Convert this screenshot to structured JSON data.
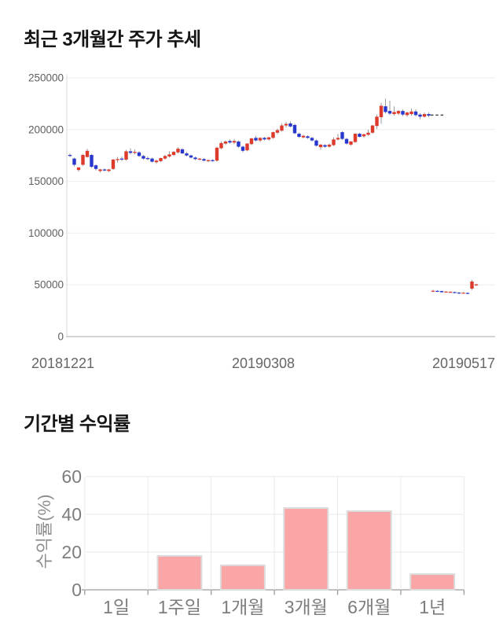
{
  "chart_data": [
    {
      "type": "candlestick",
      "title": "최근 3개월간 주가 추세",
      "x_tick_labels": [
        "20181221",
        "20190308",
        "20190517"
      ],
      "y_tick_labels": [
        "0",
        "50000",
        "100000",
        "150000",
        "200000",
        "250000"
      ],
      "y_tick_values": [
        0,
        50000,
        100000,
        150000,
        200000,
        250000
      ],
      "ylim": [
        0,
        250000
      ],
      "grid": true,
      "up_color": "#DE3A2C",
      "down_color": "#2838CE",
      "wick_color": "#9B9B9B",
      "dash_color": "#4A4A4A",
      "candles_ohlc": [
        [
          175500,
          177000,
          173500,
          174500
        ],
        [
          172000,
          173000,
          164500,
          166000
        ],
        [
          161000,
          163500,
          159500,
          163500
        ],
        [
          166000,
          176500,
          165000,
          175500
        ],
        [
          173500,
          181500,
          173000,
          179500
        ],
        [
          175500,
          176500,
          163000,
          164000
        ],
        [
          165500,
          166500,
          160500,
          162000
        ],
        [
          160000,
          162000,
          158500,
          161500
        ],
        [
          161500,
          162500,
          159500,
          160500
        ],
        [
          160000,
          162000,
          159000,
          161500
        ],
        [
          162000,
          172000,
          161000,
          171000
        ],
        [
          170500,
          173500,
          168000,
          171500
        ],
        [
          172000,
          174000,
          169500,
          171000
        ],
        [
          171000,
          180500,
          170000,
          179000
        ],
        [
          179000,
          182000,
          176000,
          177500
        ],
        [
          177500,
          181000,
          176000,
          178500
        ],
        [
          178000,
          179000,
          173500,
          174500
        ],
        [
          174500,
          175500,
          171000,
          172000
        ],
        [
          172500,
          174000,
          170500,
          171500
        ],
        [
          172000,
          173000,
          168000,
          169000
        ],
        [
          168500,
          171000,
          167000,
          170000
        ],
        [
          169500,
          173000,
          168500,
          172500
        ],
        [
          172000,
          175500,
          171000,
          174500
        ],
        [
          174000,
          179000,
          173000,
          176000
        ],
        [
          175500,
          179500,
          174500,
          178500
        ],
        [
          178000,
          183000,
          177000,
          181500
        ],
        [
          181000,
          182000,
          176500,
          177000
        ],
        [
          177000,
          178500,
          174000,
          175000
        ],
        [
          175000,
          176000,
          172000,
          173000
        ],
        [
          173000,
          174000,
          170500,
          171500
        ],
        [
          171000,
          172500,
          170000,
          172000
        ],
        [
          171500,
          172500,
          169500,
          170000
        ],
        [
          169500,
          171000,
          168500,
          170500
        ],
        [
          170500,
          171500,
          169000,
          169500
        ],
        [
          170000,
          183500,
          169000,
          182500
        ],
        [
          182000,
          188500,
          181000,
          187000
        ],
        [
          186500,
          189500,
          185000,
          188500
        ],
        [
          189000,
          190500,
          186500,
          187500
        ],
        [
          187500,
          191000,
          186000,
          189000
        ],
        [
          188500,
          189500,
          182500,
          183500
        ],
        [
          183500,
          184500,
          178000,
          179500
        ],
        [
          180000,
          187000,
          179000,
          186500
        ],
        [
          186000,
          192000,
          185000,
          191500
        ],
        [
          192000,
          194000,
          188500,
          189500
        ],
        [
          189500,
          192500,
          188000,
          192000
        ],
        [
          192000,
          193000,
          189500,
          190500
        ],
        [
          190500,
          193000,
          189500,
          192500
        ],
        [
          192000,
          198000,
          191000,
          197500
        ],
        [
          197000,
          201000,
          195500,
          199500
        ],
        [
          199000,
          206000,
          198000,
          204000
        ],
        [
          204000,
          207500,
          202000,
          205500
        ],
        [
          206000,
          208000,
          202000,
          203000
        ],
        [
          204500,
          205500,
          195500,
          196500
        ],
        [
          196000,
          197000,
          192000,
          193000
        ],
        [
          192500,
          195000,
          191500,
          194000
        ],
        [
          193500,
          194500,
          191000,
          192000
        ],
        [
          192000,
          193000,
          188500,
          189500
        ],
        [
          189500,
          190500,
          183500,
          184500
        ],
        [
          183000,
          186000,
          180500,
          185500
        ],
        [
          185000,
          186000,
          182500,
          183500
        ],
        [
          183500,
          186500,
          182500,
          185500
        ],
        [
          185000,
          192500,
          184000,
          190500
        ],
        [
          190500,
          196000,
          189500,
          192000
        ],
        [
          197500,
          198500,
          190000,
          191000
        ],
        [
          191000,
          192000,
          185500,
          186500
        ],
        [
          185500,
          189000,
          184500,
          188500
        ],
        [
          188000,
          196500,
          187000,
          196000
        ],
        [
          196000,
          197000,
          192500,
          193000
        ],
        [
          193500,
          196000,
          192000,
          195500
        ],
        [
          195000,
          200000,
          194000,
          197000
        ],
        [
          197000,
          204500,
          196000,
          204000
        ],
        [
          203500,
          214500,
          200500,
          212500
        ],
        [
          212000,
          226000,
          205500,
          223000
        ],
        [
          222500,
          230000,
          215500,
          217000
        ],
        [
          218000,
          228000,
          214000,
          215500
        ],
        [
          215000,
          222500,
          213500,
          217000
        ],
        [
          215500,
          219000,
          214000,
          218000
        ],
        [
          218000,
          219500,
          213000,
          214500
        ],
        [
          214000,
          217500,
          212500,
          216500
        ],
        [
          215000,
          220500,
          213500,
          217500
        ],
        [
          217500,
          219500,
          213000,
          214000
        ],
        [
          214500,
          216000,
          210000,
          212500
        ],
        [
          212500,
          216500,
          211500,
          215000
        ],
        [
          215000,
          216500,
          212000,
          213500
        ],
        [
          43500,
          45200,
          42800,
          44300
        ],
        [
          44200,
          44800,
          43200,
          43600
        ],
        [
          44000,
          44500,
          42500,
          42900
        ],
        [
          43000,
          43900,
          42600,
          43500
        ],
        [
          42500,
          43900,
          42200,
          43300
        ],
        [
          43000,
          43400,
          42000,
          42400
        ],
        [
          42500,
          43000,
          41300,
          41800
        ],
        [
          41800,
          42800,
          41400,
          42400
        ],
        [
          42200,
          42700,
          40800,
          41600
        ],
        [
          46300,
          54800,
          45000,
          53200
        ],
        [
          49500,
          51000,
          48800,
          50500
        ]
      ],
      "flat_dash_value": 214000
    },
    {
      "type": "bar",
      "title": "기간별 수익률",
      "categories": [
        "1일",
        "1주일",
        "1개월",
        "3개월",
        "6개월",
        "1년"
      ],
      "values": [
        0,
        18,
        13,
        43.3,
        41.7,
        8.3
      ],
      "ylabel": "수익률(%)",
      "y_tick_labels": [
        "0",
        "20",
        "40",
        "60"
      ],
      "y_tick_values": [
        0,
        20,
        40,
        60
      ],
      "ylim": [
        0,
        60
      ],
      "grid": true,
      "legend": false,
      "bar_color": "#FBA6A6",
      "bar_border_color": "#DCDCDC"
    }
  ]
}
